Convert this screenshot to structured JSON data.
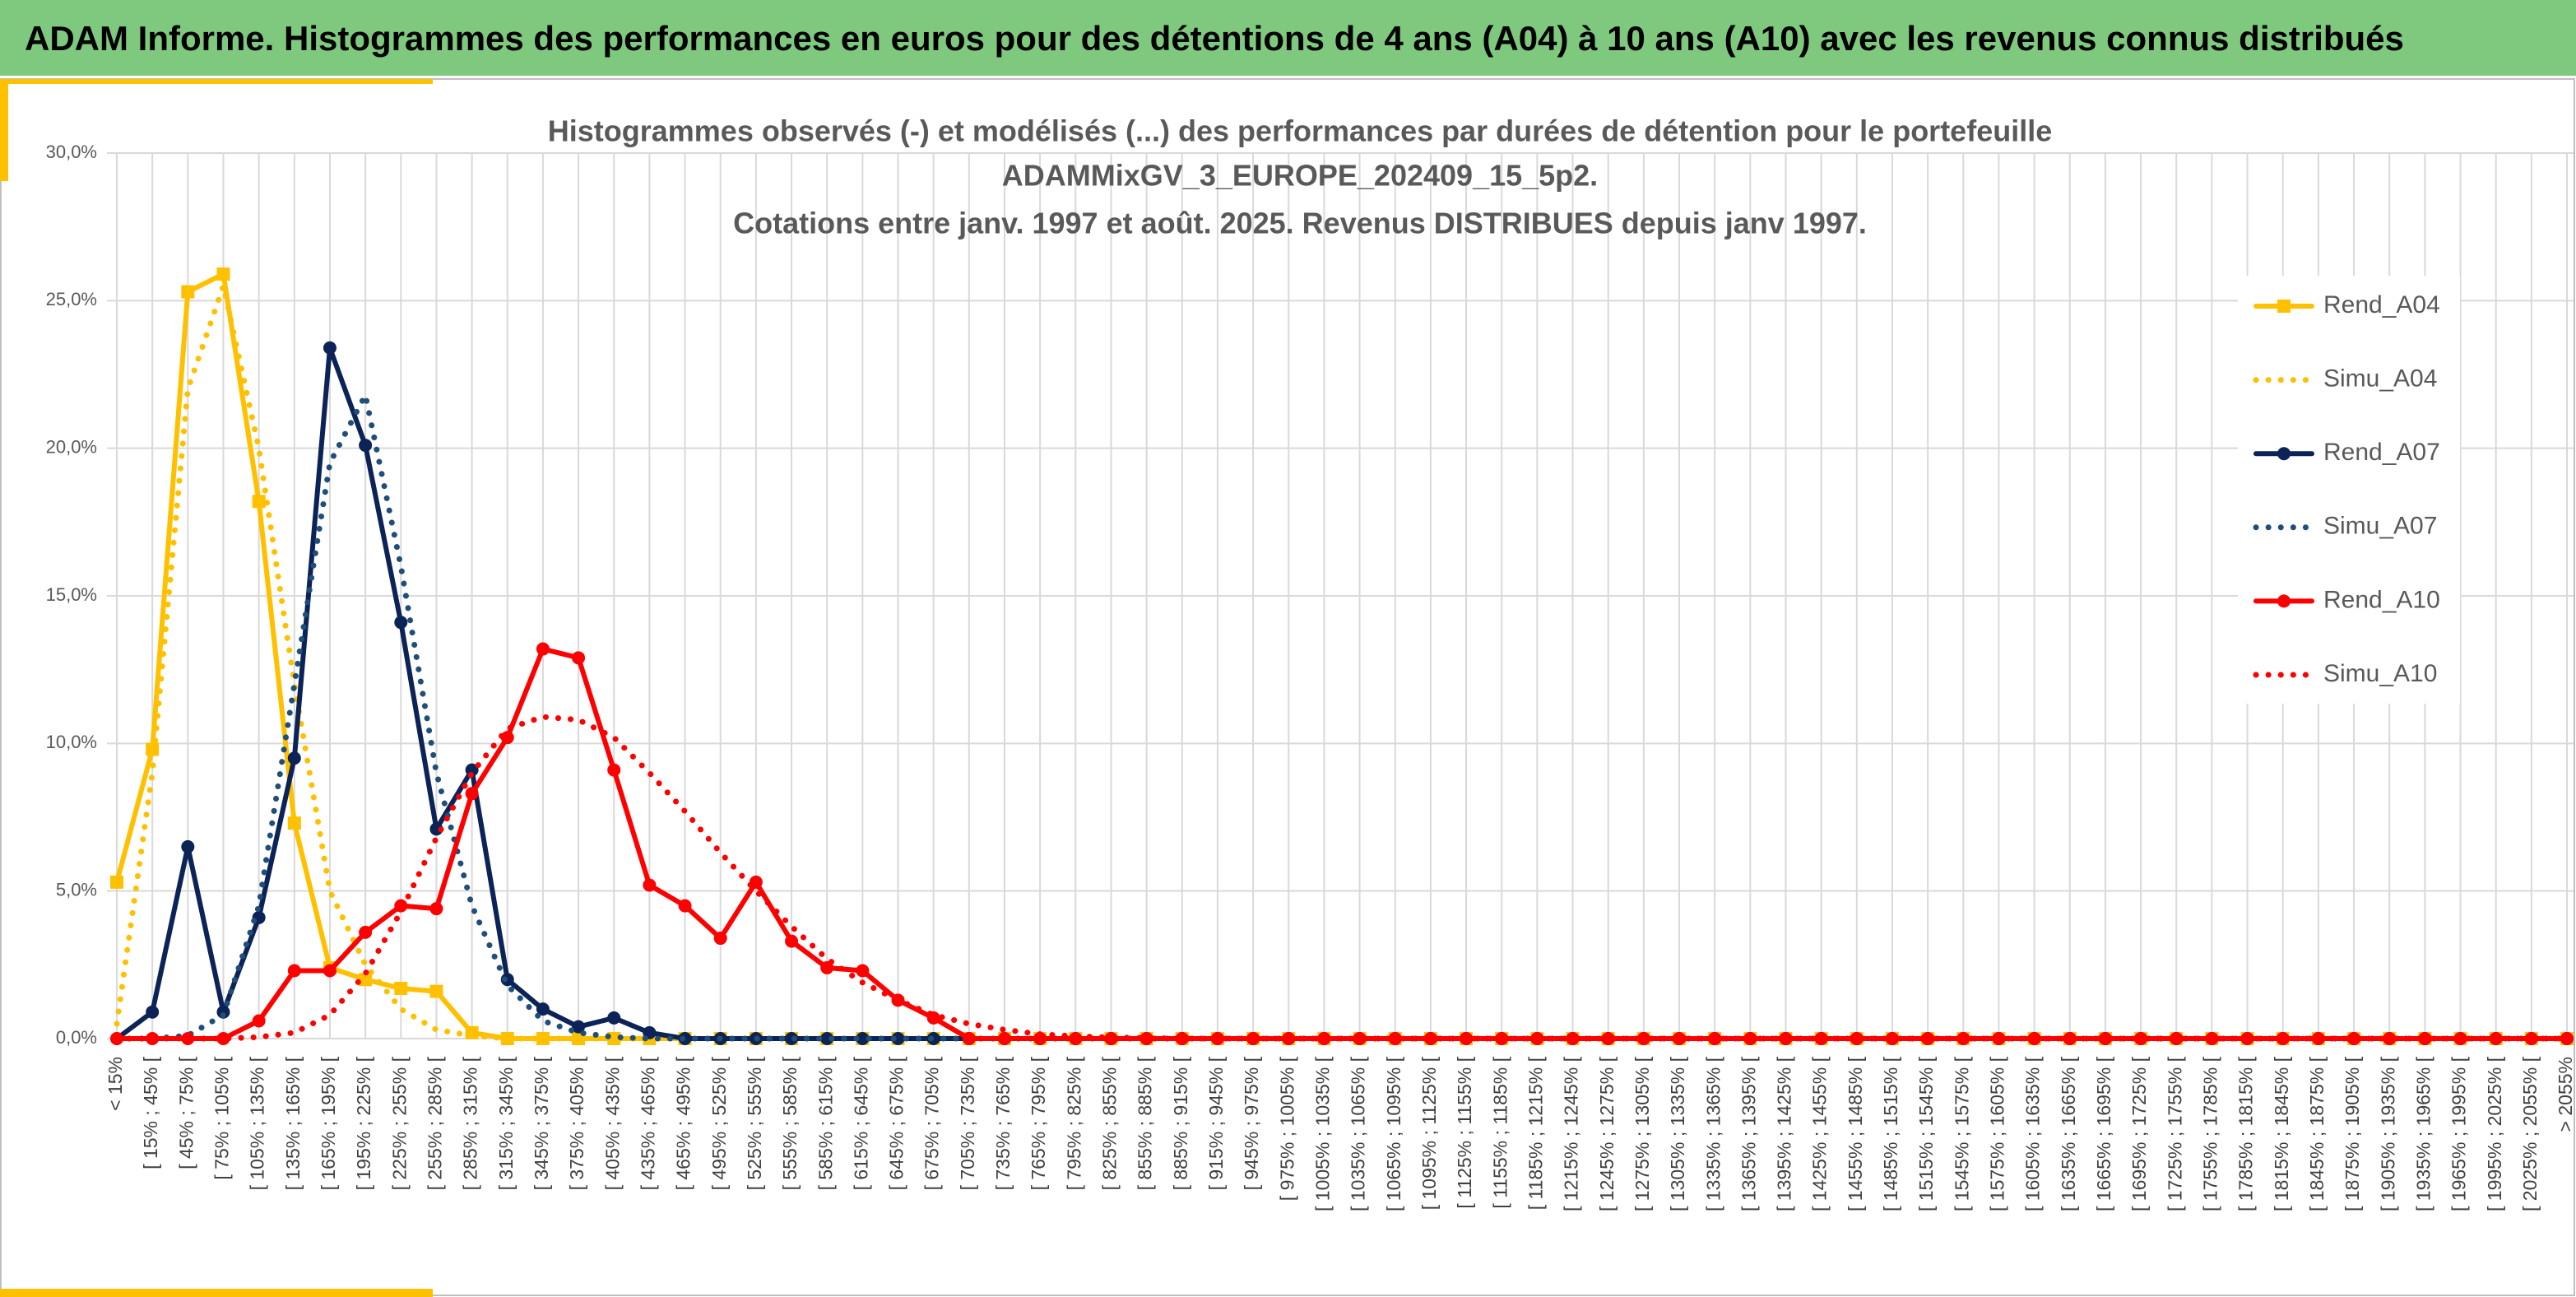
{
  "header": {
    "title": "ADAM Informe. Histogrammes des performances en euros pour des détentions de 4 ans (A04) à 10 ans (A10) avec les revenus connus distribués"
  },
  "chart_data": {
    "type": "line",
    "title": [
      "Histogrammes observés (-) et modélisés (...) des performances par durées de détention pour le portefeuille",
      "ADAMMixGV_3_EUROPE_202409_15_5p2.",
      "Cotations entre janv. 1997 et août. 2025. Revenus DISTRIBUES depuis janv 1997."
    ],
    "categories": [
      "< 15%",
      "[ 15% ; 45% [",
      "[ 45% ; 75% [",
      "[ 75% ; 105% [",
      "[ 105% ; 135% [",
      "[ 135% ; 165% [",
      "[ 165% ; 195% [",
      "[ 195% ; 225% [",
      "[ 225% ; 255% [",
      "[ 255% ; 285% [",
      "[ 285% ; 315% [",
      "[ 315% ; 345% [",
      "[ 345% ; 375% [",
      "[ 375% ; 405% [",
      "[ 405% ; 435% [",
      "[ 435% ; 465% [",
      "[ 465% ; 495% [",
      "[ 495% ; 525% [",
      "[ 525% ; 555% [",
      "[ 555% ; 585% [",
      "[ 585% ; 615% [",
      "[ 615% ; 645% [",
      "[ 645% ; 675% [",
      "[ 675% ; 705% [",
      "[ 705% ; 735% [",
      "[ 735% ; 765% [",
      "[ 765% ; 795% [",
      "[ 795% ; 825% [",
      "[ 825% ; 855% [",
      "[ 855% ; 885% [",
      "[ 885% ; 915% [",
      "[ 915% ; 945% [",
      "[ 945% ; 975% [",
      "[ 975% ; 1005% [",
      "[ 1005% ; 1035% [",
      "[ 1035% ; 1065% [",
      "[ 1065% ; 1095% [",
      "[ 1095% ; 1125% [",
      "[ 1125% ; 1155% [",
      "[ 1155% ; 1185% [",
      "[ 1185% ; 1215% [",
      "[ 1215% ; 1245% [",
      "[ 1245% ; 1275% [",
      "[ 1275% ; 1305% [",
      "[ 1305% ; 1335% [",
      "[ 1335% ; 1365% [",
      "[ 1365% ; 1395% [",
      "[ 1395% ; 1425% [",
      "[ 1425% ; 1455% [",
      "[ 1455% ; 1485% [",
      "[ 1485% ; 1515% [",
      "[ 1515% ; 1545% [",
      "[ 1545% ; 1575% [",
      "[ 1575% ; 1605% [",
      "[ 1605% ; 1635% [",
      "[ 1635% ; 1665% [",
      "[ 1665% ; 1695% [",
      "[ 1695% ; 1725% [",
      "[ 1725% ; 1755% [",
      "[ 1755% ; 1785% [",
      "[ 1785% ; 1815% [",
      "[ 1815% ; 1845% [",
      "[ 1845% ; 1875% [",
      "[ 1875% ; 1905% [",
      "[ 1905% ; 1935% [",
      "[ 1935% ; 1965% [",
      "[ 1965% ; 1995% [",
      "[ 1995% ; 2025% [",
      "[ 2025% ; 2055% [",
      "> 2055%"
    ],
    "series": [
      {
        "name": "Rend_A04",
        "color": "#ffc000",
        "style": "solid",
        "marker": "square",
        "values": [
          5.3,
          9.8,
          25.3,
          25.9,
          18.2,
          7.3,
          2.4,
          2.0,
          1.7,
          1.6,
          0.2,
          0,
          0,
          0,
          0,
          0,
          0,
          0,
          0,
          0,
          0,
          0,
          0,
          0,
          0,
          0,
          0,
          0,
          0,
          0,
          0,
          0,
          0,
          0,
          0,
          0,
          0,
          0,
          0,
          0,
          0,
          0,
          0,
          0,
          0,
          0,
          0,
          0,
          0,
          0,
          0,
          0,
          0,
          0,
          0,
          0,
          0,
          0,
          0,
          0,
          0,
          0,
          0,
          0,
          0,
          0,
          0,
          0,
          0,
          0
        ]
      },
      {
        "name": "Simu_A04",
        "color": "#ffc000",
        "style": "dotted",
        "marker": null,
        "values": [
          0.5,
          9.0,
          22,
          25.5,
          20,
          12,
          5,
          2.5,
          1.0,
          0.3,
          0.1,
          0,
          0,
          0,
          0,
          0,
          0,
          0,
          0,
          0,
          0,
          0,
          0,
          0,
          0,
          0,
          0,
          0,
          0,
          0,
          0,
          0,
          0,
          0,
          0,
          0,
          0,
          0,
          0,
          0,
          0,
          0,
          0,
          0,
          0,
          0,
          0,
          0,
          0,
          0,
          0,
          0,
          0,
          0,
          0,
          0,
          0,
          0,
          0,
          0,
          0,
          0,
          0,
          0,
          0,
          0,
          0,
          0,
          0,
          0
        ]
      },
      {
        "name": "Rend_A07",
        "color": "#0b2356",
        "style": "solid",
        "marker": "circle",
        "values": [
          0,
          0.9,
          6.5,
          0.9,
          4.1,
          9.5,
          23.4,
          20.1,
          14.1,
          7.1,
          9.1,
          2.0,
          1.0,
          0.4,
          0.7,
          0.2,
          0,
          0,
          0,
          0,
          0,
          0,
          0,
          0,
          0,
          0,
          0,
          0,
          0,
          0,
          0,
          0,
          0,
          0,
          0,
          0,
          0,
          0,
          0,
          0,
          0,
          0,
          0,
          0,
          0,
          0,
          0,
          0,
          0,
          0,
          0,
          0,
          0,
          0,
          0,
          0,
          0,
          0,
          0,
          0,
          0,
          0,
          0,
          0,
          0,
          0,
          0,
          0,
          0,
          0
        ]
      },
      {
        "name": "Simu_A07",
        "color": "#1f4e79",
        "style": "dotted",
        "marker": null,
        "values": [
          0,
          0,
          0.1,
          0.8,
          4.5,
          12,
          19.5,
          21.8,
          16,
          9,
          4.5,
          1.8,
          0.6,
          0.2,
          0.05,
          0,
          0,
          0,
          0,
          0,
          0,
          0,
          0,
          0,
          0,
          0,
          0,
          0,
          0,
          0,
          0,
          0,
          0,
          0,
          0,
          0,
          0,
          0,
          0,
          0,
          0,
          0,
          0,
          0,
          0,
          0,
          0,
          0,
          0,
          0,
          0,
          0,
          0,
          0,
          0,
          0,
          0,
          0,
          0,
          0,
          0,
          0,
          0,
          0,
          0,
          0,
          0,
          0,
          0,
          0
        ]
      },
      {
        "name": "Rend_A10",
        "color": "#ff0000",
        "style": "solid",
        "marker": "circle",
        "values": [
          0,
          0,
          0,
          0,
          0.6,
          2.3,
          2.3,
          3.6,
          4.5,
          4.4,
          8.3,
          10.2,
          13.2,
          12.9,
          9.1,
          5.2,
          4.5,
          3.4,
          5.3,
          3.3,
          2.4,
          2.3,
          1.3,
          0.7,
          0,
          0,
          0,
          0,
          0,
          0,
          0,
          0,
          0,
          0,
          0,
          0,
          0,
          0,
          0,
          0,
          0,
          0,
          0,
          0,
          0,
          0,
          0,
          0,
          0,
          0,
          0,
          0,
          0,
          0,
          0,
          0,
          0,
          0,
          0,
          0,
          0,
          0,
          0,
          0,
          0,
          0,
          0,
          0,
          0,
          0
        ]
      },
      {
        "name": "Simu_A10",
        "color": "#ff0000",
        "style": "dotted",
        "marker": null,
        "values": [
          0,
          0,
          0,
          0,
          0.05,
          0.2,
          0.8,
          2.2,
          4.3,
          6.8,
          9.0,
          10.5,
          10.9,
          10.8,
          10.2,
          9.0,
          7.7,
          6.3,
          5.0,
          3.8,
          2.7,
          1.9,
          1.3,
          0.8,
          0.5,
          0.3,
          0.15,
          0.08,
          0.04,
          0.02,
          0,
          0,
          0,
          0,
          0,
          0,
          0,
          0,
          0,
          0,
          0,
          0,
          0,
          0,
          0,
          0,
          0,
          0,
          0,
          0,
          0,
          0,
          0,
          0,
          0,
          0,
          0,
          0,
          0,
          0,
          0,
          0,
          0,
          0,
          0,
          0,
          0,
          0,
          0,
          0
        ]
      }
    ],
    "ylim": [
      0,
      30
    ],
    "yticks": [
      {
        "value": 0,
        "label": "0,0%"
      },
      {
        "value": 5,
        "label": "5,0%"
      },
      {
        "value": 10,
        "label": "10,0%"
      },
      {
        "value": 15,
        "label": "15,0%"
      },
      {
        "value": 20,
        "label": "20,0%"
      },
      {
        "value": 25,
        "label": "25,0%"
      },
      {
        "value": 30,
        "label": "30,0%"
      }
    ],
    "grid": true,
    "legend": "right"
  }
}
